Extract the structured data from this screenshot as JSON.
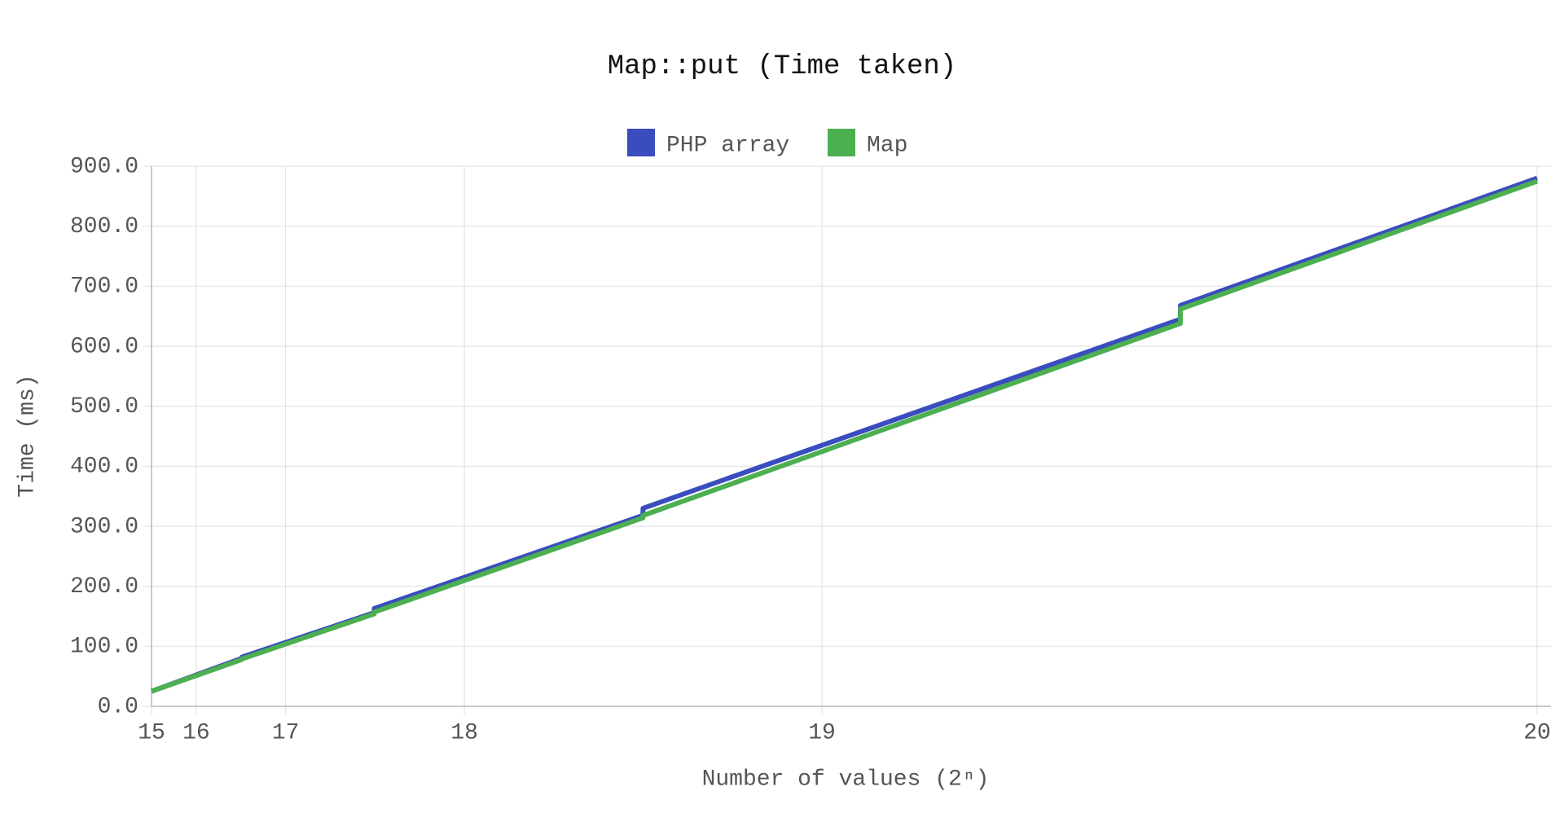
{
  "chart_data": {
    "type": "line",
    "title": "Map::put (Time taken)",
    "xlabel": "Number of values (2ⁿ)",
    "ylabel": "Time (ms)",
    "x": [
      32768,
      99000,
      99100,
      196000,
      196100,
      393000,
      393100,
      787000,
      787100,
      1048576
    ],
    "series": [
      {
        "name": "PHP array",
        "color": "#3a4dbf",
        "values": [
          25,
          80,
          82,
          156,
          163,
          318,
          330,
          645,
          668,
          880
        ]
      },
      {
        "name": "Map",
        "color": "#4caf50",
        "values": [
          25,
          78,
          79,
          154,
          157,
          314,
          318,
          638,
          662,
          875
        ]
      }
    ],
    "xlim": [
      32768,
      1048576
    ],
    "xticks": [
      {
        "value": 32768,
        "label": "15"
      },
      {
        "value": 65536,
        "label": "16"
      },
      {
        "value": 131072,
        "label": "17"
      },
      {
        "value": 262144,
        "label": "18"
      },
      {
        "value": 524288,
        "label": "19"
      },
      {
        "value": 1048576,
        "label": "20"
      }
    ],
    "ylim": [
      0,
      900
    ],
    "yticks": [
      {
        "value": 0,
        "label": "0.0"
      },
      {
        "value": 100,
        "label": "100.0"
      },
      {
        "value": 200,
        "label": "200.0"
      },
      {
        "value": 300,
        "label": "300.0"
      },
      {
        "value": 400,
        "label": "400.0"
      },
      {
        "value": 500,
        "label": "500.0"
      },
      {
        "value": 600,
        "label": "600.0"
      },
      {
        "value": 700,
        "label": "700.0"
      },
      {
        "value": 800,
        "label": "800.0"
      },
      {
        "value": 900,
        "label": "900.0"
      }
    ],
    "grid": true,
    "legend": "top"
  }
}
